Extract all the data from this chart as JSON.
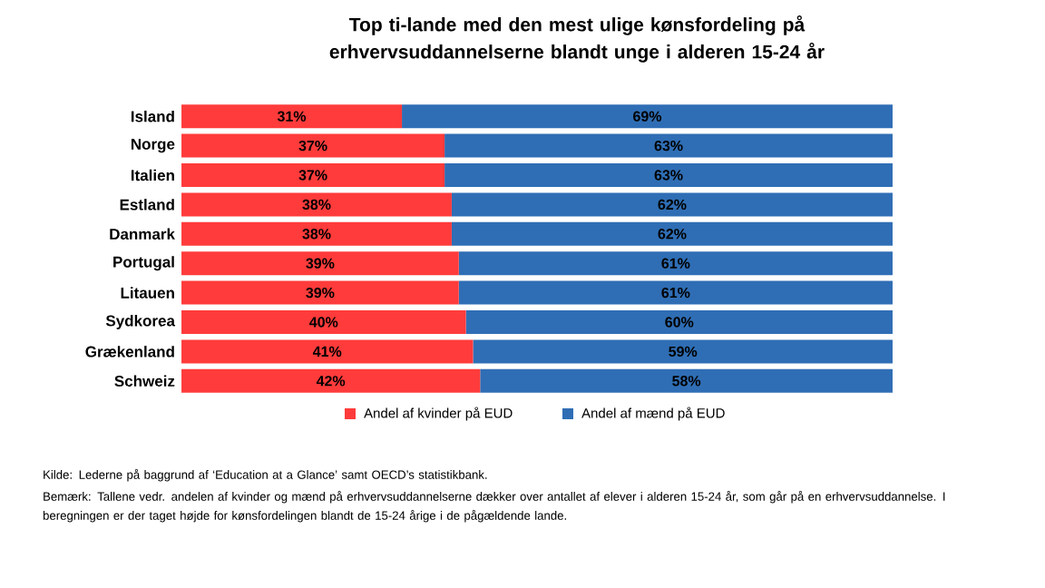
{
  "chart_data": {
    "type": "bar",
    "orientation": "horizontal",
    "stacked": true,
    "title": "Top ti-lande med den mest ulige kønsfordeling på erhvervsuddannelserne blandt unge i alderen 15-24 år",
    "categories": [
      "Island",
      "Norge",
      "Italien",
      "Estland",
      "Danmark",
      "Portugal",
      "Litauen",
      "Sydkorea",
      "Grækenland",
      "Schweiz"
    ],
    "series": [
      {
        "name": "Andel af kvinder på EUD",
        "color": "#ff3b3b",
        "values": [
          31,
          37,
          37,
          38,
          38,
          39,
          39,
          40,
          41,
          42
        ],
        "value_labels": [
          "31%",
          "37%",
          "37%",
          "38%",
          "38%",
          "39%",
          "39%",
          "40%",
          "41%",
          "42%"
        ]
      },
      {
        "name": "Andel af mænd på EUD",
        "color": "#2f6eb5",
        "values": [
          69,
          63,
          63,
          62,
          62,
          61,
          61,
          60,
          59,
          58
        ],
        "value_labels": [
          "69%",
          "63%",
          "63%",
          "62%",
          "62%",
          "61%",
          "61%",
          "60%",
          "59%",
          "58%"
        ]
      }
    ],
    "xlim": [
      0,
      100
    ],
    "tick_labels": "y",
    "legend": "bottom",
    "annotations": [
      "Kilde: Lederne på baggrund af ‘Education at a Glance’ samt OECD’s statistikbank.",
      "Bemærk: Tallene vedr. andelen af kvinder og mænd på erhvervsuddannelserne dækker over antallet af elever i alderen 15-24 år, som går på en erhvervsuddannelse. I beregningen er der taget højde for kønsfordelingen blandt de 15-24 årige i de pågældende lande."
    ]
  }
}
